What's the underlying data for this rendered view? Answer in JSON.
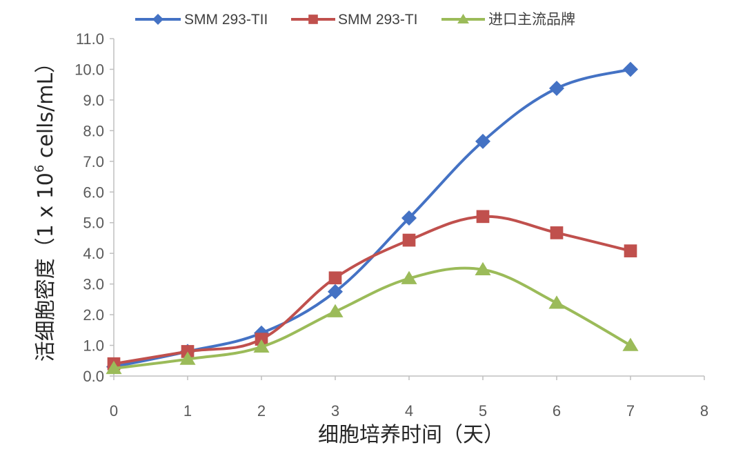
{
  "chart_data": {
    "type": "line",
    "x": [
      0,
      1,
      2,
      3,
      4,
      5,
      6,
      7
    ],
    "xlim": [
      0,
      8
    ],
    "ylim": [
      0,
      11
    ],
    "x_ticks": [
      "0",
      "1",
      "2",
      "3",
      "4",
      "5",
      "6",
      "7",
      "8"
    ],
    "y_ticks": [
      "0.0",
      "1.0",
      "2.0",
      "3.0",
      "4.0",
      "5.0",
      "6.0",
      "7.0",
      "8.0",
      "9.0",
      "10.0",
      "11.0"
    ],
    "xlabel": "细胞培养时间（天）",
    "ylabel_prefix": "活细胞密度（1 x 10",
    "ylabel_sup": "6",
    "ylabel_suffix": " cells/mL）",
    "grid": false,
    "smooth": true,
    "legend_position": "top",
    "series": [
      {
        "name": "SMM 293-TII",
        "color": "#4472C4",
        "marker": "diamond",
        "values": [
          0.3,
          0.8,
          1.4,
          2.75,
          5.15,
          7.65,
          9.38,
          10.0
        ]
      },
      {
        "name": "SMM 293-TI",
        "color": "#C0504D",
        "marker": "square",
        "values": [
          0.4,
          0.8,
          1.2,
          3.2,
          4.43,
          5.2,
          4.67,
          4.08
        ]
      },
      {
        "name": "进口主流品牌",
        "color": "#9BBB59",
        "marker": "triangle",
        "values": [
          0.25,
          0.55,
          0.95,
          2.1,
          3.18,
          3.47,
          2.38,
          1.0
        ]
      }
    ]
  }
}
